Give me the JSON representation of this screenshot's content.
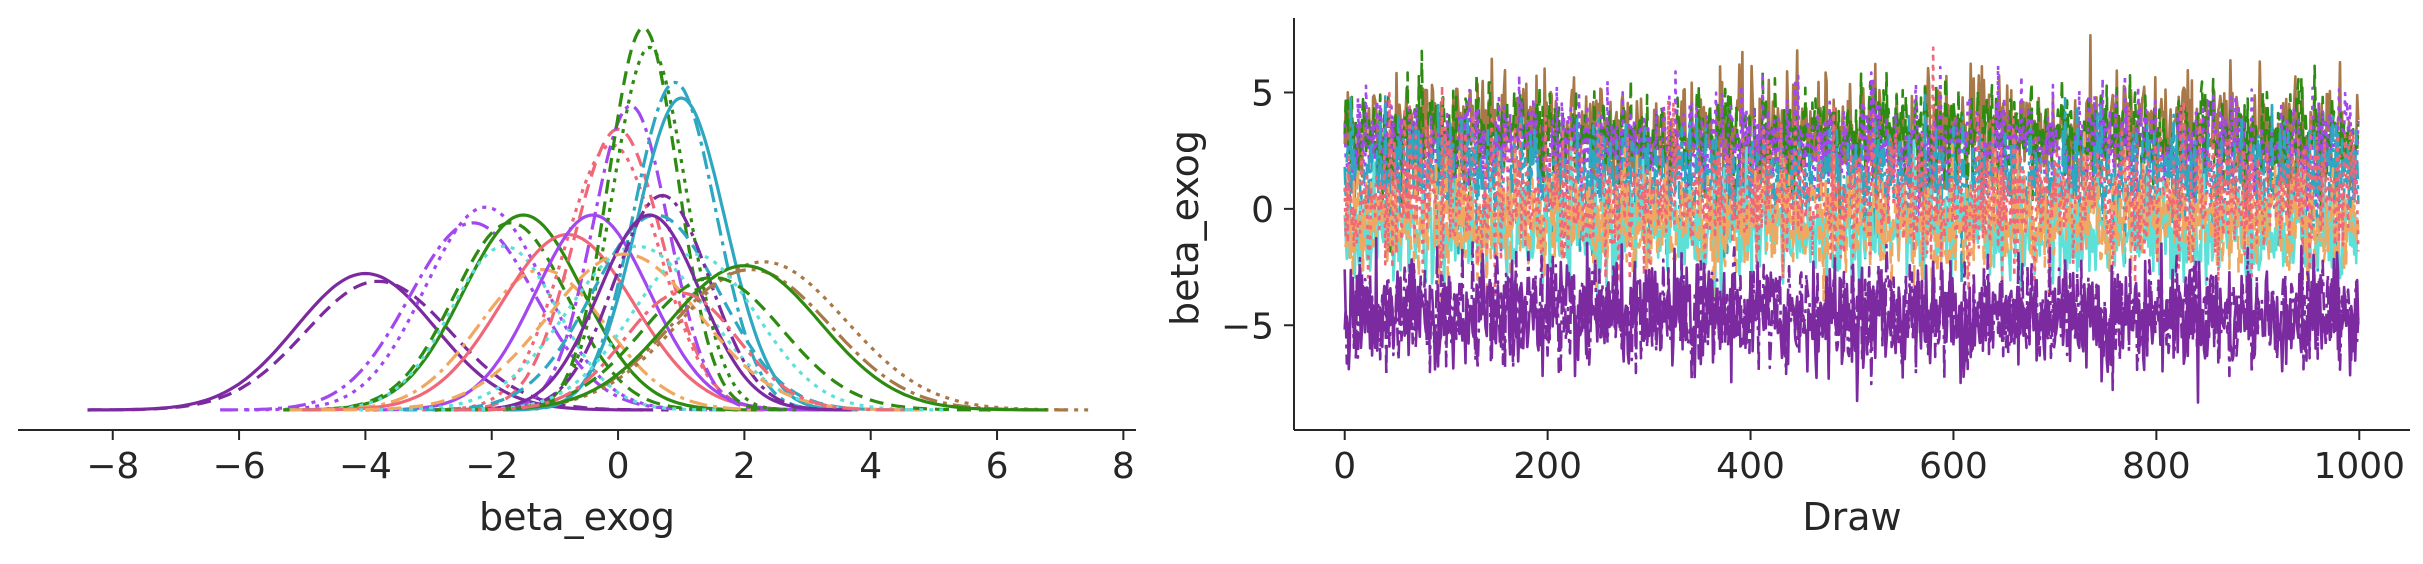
{
  "chart_data": [
    {
      "type": "line",
      "panel": "density",
      "xlabel": "beta_exog",
      "ylabel": "",
      "xlim": [
        -9.5,
        8.2
      ],
      "ylim": [
        0,
        1.0
      ],
      "xticks": [
        -8,
        -6,
        -4,
        -2,
        0,
        2,
        4,
        6,
        8
      ],
      "xtick_labels": [
        "−8",
        "−6",
        "−4",
        "−2",
        "0",
        "2",
        "4",
        "6",
        "8"
      ],
      "y_axis_visible": false,
      "grid": false,
      "legend": "none",
      "series": [
        {
          "color": "#7B2AA0",
          "mu": -4.0,
          "sigma": 1.1,
          "peak": 0.35
        },
        {
          "color": "#7B2AA0",
          "mu": -3.8,
          "sigma": 1.15,
          "peak": 0.33
        },
        {
          "color": "#A347F0",
          "mu": -2.1,
          "sigma": 0.95,
          "peak": 0.52
        },
        {
          "color": "#A347F0",
          "mu": -2.3,
          "sigma": 1.0,
          "peak": 0.48
        },
        {
          "color": "#2E8B12",
          "mu": -1.5,
          "sigma": 0.95,
          "peak": 0.5
        },
        {
          "color": "#2E8B12",
          "mu": -1.7,
          "sigma": 0.9,
          "peak": 0.48
        },
        {
          "color": "#5CE0D8",
          "mu": -1.8,
          "sigma": 0.85,
          "peak": 0.42
        },
        {
          "color": "#F0A860",
          "mu": -1.2,
          "sigma": 1.0,
          "peak": 0.36
        },
        {
          "color": "#F06878",
          "mu": -0.8,
          "sigma": 1.05,
          "peak": 0.45
        },
        {
          "color": "#F06878",
          "mu": 0.0,
          "sigma": 0.7,
          "peak": 0.72
        },
        {
          "color": "#F06878",
          "mu": -0.1,
          "sigma": 0.75,
          "peak": 0.68
        },
        {
          "color": "#A347F0",
          "mu": 0.2,
          "sigma": 0.6,
          "peak": 0.78
        },
        {
          "color": "#A347F0",
          "mu": -0.4,
          "sigma": 0.9,
          "peak": 0.5
        },
        {
          "color": "#2E8B12",
          "mu": 0.4,
          "sigma": 0.55,
          "peak": 0.98
        },
        {
          "color": "#2E8B12",
          "mu": 0.5,
          "sigma": 0.58,
          "peak": 0.93
        },
        {
          "color": "#2EA8C0",
          "mu": 0.9,
          "sigma": 0.65,
          "peak": 0.84
        },
        {
          "color": "#2EA8C0",
          "mu": 1.0,
          "sigma": 0.7,
          "peak": 0.8
        },
        {
          "color": "#2EA8C0",
          "mu": 0.6,
          "sigma": 1.0,
          "peak": 0.5
        },
        {
          "color": "#5CE0D8",
          "mu": 0.3,
          "sigma": 1.1,
          "peak": 0.42
        },
        {
          "color": "#7B2AA0",
          "mu": 0.7,
          "sigma": 0.75,
          "peak": 0.55
        },
        {
          "color": "#7B2AA0",
          "mu": 0.5,
          "sigma": 0.8,
          "peak": 0.5
        },
        {
          "color": "#F0A860",
          "mu": 0.1,
          "sigma": 1.2,
          "peak": 0.4
        },
        {
          "color": "#A87848",
          "mu": 2.3,
          "sigma": 1.3,
          "peak": 0.38
        },
        {
          "color": "#A87848",
          "mu": 2.1,
          "sigma": 1.25,
          "peak": 0.36
        },
        {
          "color": "#2E8B12",
          "mu": 2.0,
          "sigma": 1.2,
          "peak": 0.37
        },
        {
          "color": "#2E8B12",
          "mu": 1.5,
          "sigma": 1.1,
          "peak": 0.34
        },
        {
          "color": "#5CE0D8",
          "mu": 1.2,
          "sigma": 1.0,
          "peak": 0.4
        },
        {
          "color": "#F06878",
          "mu": 1.0,
          "sigma": 0.9,
          "peak": 0.3
        }
      ]
    },
    {
      "type": "line",
      "panel": "trace",
      "xlabel": "Draw",
      "ylabel": "beta_exog",
      "xlim": [
        -50,
        1050
      ],
      "ylim": [
        -9.5,
        8.2
      ],
      "xticks": [
        0,
        200,
        400,
        600,
        800,
        1000
      ],
      "xtick_labels": [
        "0",
        "200",
        "400",
        "600",
        "800",
        "1000"
      ],
      "yticks": [
        -5,
        0,
        5
      ],
      "ytick_labels": [
        "−5",
        "0",
        "5"
      ],
      "draws": 1000,
      "grid": false,
      "legend": "none",
      "series": [
        {
          "color": "#A87848",
          "mean": 3.2,
          "sd": 1.3
        },
        {
          "color": "#2E8B12",
          "mean": 3.0,
          "sd": 1.2
        },
        {
          "color": "#A347F0",
          "mean": 2.6,
          "sd": 1.2
        },
        {
          "color": "#2EA8C0",
          "mean": 1.2,
          "sd": 1.3
        },
        {
          "color": "#5CE0D8",
          "mean": -1.0,
          "sd": 1.1
        },
        {
          "color": "#F0A860",
          "mean": -0.5,
          "sd": 1.2
        },
        {
          "color": "#F06878",
          "mean": 0.5,
          "sd": 1.5
        },
        {
          "color": "#7B2AA0",
          "mean": -4.4,
          "sd": 1.15
        },
        {
          "color": "#7B2AA0",
          "mean": -4.6,
          "sd": 1.1
        }
      ]
    }
  ]
}
